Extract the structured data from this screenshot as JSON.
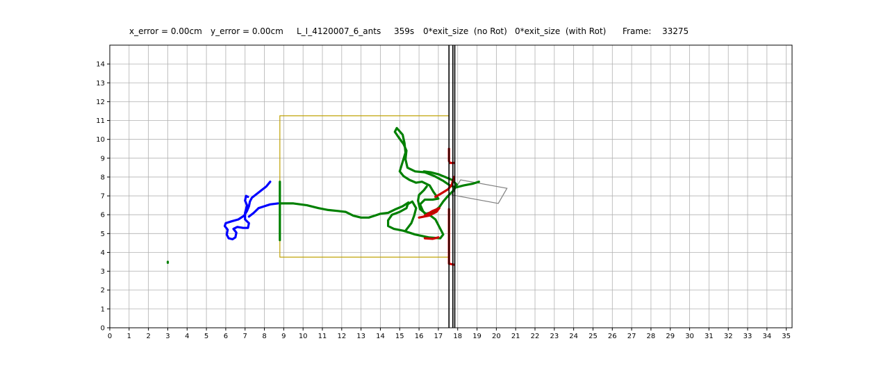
{
  "header": {
    "x_error": "x_error = 0.00cm",
    "y_error": "y_error = 0.00cm",
    "experiment": "L_I_4120007_6_ants",
    "time": "359s",
    "exit_no_rot": "0*exit_size  (no Rot)",
    "exit_with_rot": "0*exit_size  (with Rot)",
    "frame_label": "Frame:",
    "frame_value": "33275"
  },
  "chart_data": {
    "type": "line",
    "title": "",
    "xlabel": "",
    "ylabel": "",
    "xlim": [
      0,
      35.3
    ],
    "ylim": [
      0,
      15
    ],
    "xticks": [
      0,
      1,
      2,
      3,
      4,
      5,
      6,
      7,
      8,
      9,
      10,
      11,
      12,
      13,
      14,
      15,
      16,
      17,
      18,
      19,
      20,
      21,
      22,
      23,
      24,
      25,
      26,
      27,
      28,
      29,
      30,
      31,
      32,
      33,
      34,
      35
    ],
    "yticks": [
      0,
      1,
      2,
      3,
      4,
      5,
      6,
      7,
      8,
      9,
      10,
      11,
      12,
      13,
      14
    ],
    "grid": true,
    "colors": {
      "blue_track": "#0000ff",
      "green_track": "#008000",
      "red_track": "#cc0000",
      "box": "#bfa100",
      "walls": "#000000",
      "shape": "#808080",
      "grid": "#b0b0b0"
    },
    "slit_walls_x": [
      17.55,
      17.75,
      17.85
    ],
    "box_rect": {
      "x0": 8.8,
      "x1": 17.55,
      "y0": 3.75,
      "y1": 11.25
    },
    "load_shape": [
      [
        18.15,
        7.85
      ],
      [
        20.55,
        7.4
      ],
      [
        20.1,
        6.6
      ],
      [
        17.7,
        7.05
      ]
    ],
    "series": [
      {
        "color": "blue",
        "points": [
          [
            8.3,
            7.75
          ],
          [
            8.1,
            7.5
          ],
          [
            7.85,
            7.3
          ],
          [
            7.6,
            7.1
          ],
          [
            7.35,
            6.9
          ],
          [
            7.25,
            6.7
          ],
          [
            7.2,
            6.45
          ],
          [
            7.1,
            6.2
          ],
          [
            6.95,
            5.95
          ],
          [
            6.65,
            5.75
          ],
          [
            6.3,
            5.65
          ],
          [
            6.0,
            5.55
          ],
          [
            5.95,
            5.4
          ],
          [
            6.1,
            5.2
          ],
          [
            6.05,
            4.95
          ],
          [
            6.15,
            4.75
          ],
          [
            6.35,
            4.7
          ],
          [
            6.5,
            4.8
          ],
          [
            6.55,
            5.05
          ],
          [
            6.4,
            5.25
          ],
          [
            6.6,
            5.35
          ],
          [
            6.9,
            5.3
          ],
          [
            7.15,
            5.3
          ],
          [
            7.2,
            5.55
          ],
          [
            7.0,
            5.75
          ],
          [
            7.0,
            6.1
          ],
          [
            7.1,
            6.5
          ],
          [
            7.0,
            6.75
          ],
          [
            7.05,
            7.0
          ],
          [
            7.15,
            6.95
          ]
        ]
      },
      {
        "color": "blue",
        "points": [
          [
            7.2,
            5.9
          ],
          [
            7.45,
            6.1
          ],
          [
            7.7,
            6.35
          ],
          [
            8.0,
            6.45
          ],
          [
            8.3,
            6.55
          ],
          [
            8.7,
            6.6
          ]
        ]
      },
      {
        "color": "green",
        "points": [
          [
            8.8,
            4.65
          ],
          [
            8.8,
            7.75
          ]
        ]
      },
      {
        "color": "green",
        "points": [
          [
            8.8,
            6.6
          ],
          [
            9.5,
            6.6
          ],
          [
            10.2,
            6.5
          ],
          [
            10.8,
            6.35
          ],
          [
            11.3,
            6.25
          ],
          [
            11.8,
            6.2
          ],
          [
            12.2,
            6.15
          ],
          [
            12.6,
            5.95
          ],
          [
            13.0,
            5.85
          ],
          [
            13.4,
            5.85
          ],
          [
            13.7,
            5.95
          ],
          [
            14.0,
            6.05
          ],
          [
            14.4,
            6.1
          ],
          [
            14.8,
            6.3
          ],
          [
            15.15,
            6.45
          ],
          [
            15.45,
            6.65
          ],
          [
            15.35,
            6.35
          ],
          [
            15.0,
            6.15
          ],
          [
            14.6,
            6.0
          ],
          [
            14.4,
            5.7
          ],
          [
            14.4,
            5.4
          ],
          [
            14.7,
            5.25
          ],
          [
            15.2,
            5.15
          ],
          [
            15.8,
            4.95
          ],
          [
            16.5,
            4.8
          ],
          [
            17.1,
            4.75
          ],
          [
            17.25,
            4.95
          ],
          [
            17.05,
            5.35
          ],
          [
            16.85,
            5.75
          ],
          [
            16.6,
            5.95
          ],
          [
            16.35,
            6.0
          ],
          [
            16.2,
            6.2
          ],
          [
            16.05,
            6.55
          ],
          [
            16.3,
            6.8
          ],
          [
            16.7,
            6.8
          ],
          [
            17.0,
            6.85
          ],
          [
            16.75,
            7.2
          ],
          [
            16.55,
            7.55
          ],
          [
            16.15,
            7.75
          ],
          [
            15.85,
            7.7
          ],
          [
            15.5,
            7.85
          ],
          [
            15.2,
            8.05
          ],
          [
            15.0,
            8.3
          ],
          [
            15.15,
            8.8
          ],
          [
            15.3,
            9.3
          ],
          [
            15.25,
            9.8
          ],
          [
            15.15,
            10.25
          ],
          [
            14.85,
            10.6
          ],
          [
            14.75,
            10.4
          ],
          [
            14.95,
            10.1
          ],
          [
            15.2,
            9.75
          ],
          [
            15.35,
            9.4
          ],
          [
            15.3,
            8.95
          ],
          [
            15.4,
            8.5
          ],
          [
            15.8,
            8.3
          ],
          [
            16.3,
            8.25
          ],
          [
            16.8,
            8.05
          ],
          [
            17.25,
            7.8
          ],
          [
            17.6,
            7.55
          ],
          [
            17.9,
            7.45
          ],
          [
            18.3,
            7.55
          ],
          [
            18.8,
            7.65
          ],
          [
            19.1,
            7.75
          ]
        ]
      },
      {
        "color": "green",
        "points": [
          [
            16.4,
            7.5
          ],
          [
            16.25,
            7.3
          ],
          [
            16.0,
            7.05
          ],
          [
            15.95,
            6.75
          ],
          [
            16.05,
            6.3
          ],
          [
            16.35,
            6.05
          ],
          [
            16.75,
            6.15
          ],
          [
            17.05,
            6.4
          ],
          [
            17.25,
            6.7
          ],
          [
            17.5,
            7.0
          ],
          [
            17.8,
            7.3
          ],
          [
            17.95,
            7.6
          ],
          [
            17.7,
            7.85
          ],
          [
            17.35,
            8.0
          ],
          [
            17.0,
            8.15
          ],
          [
            16.6,
            8.25
          ],
          [
            16.25,
            8.3
          ]
        ]
      },
      {
        "color": "green",
        "points": [
          [
            15.3,
            5.15
          ],
          [
            15.6,
            5.55
          ],
          [
            15.75,
            5.95
          ],
          [
            15.85,
            6.35
          ],
          [
            15.65,
            6.7
          ],
          [
            15.4,
            6.55
          ]
        ]
      },
      {
        "color": "green",
        "points": [
          [
            3.0,
            3.5
          ],
          [
            3.0,
            3.45
          ]
        ]
      },
      {
        "color": "red",
        "points": [
          [
            17.55,
            9.5
          ],
          [
            17.55,
            8.85
          ],
          [
            17.6,
            8.75
          ],
          [
            17.8,
            8.75
          ]
        ]
      },
      {
        "color": "red",
        "points": [
          [
            17.55,
            6.3
          ],
          [
            17.55,
            3.4
          ],
          [
            17.8,
            3.35
          ]
        ]
      },
      {
        "color": "red",
        "points": [
          [
            16.0,
            5.85
          ],
          [
            16.5,
            5.95
          ],
          [
            16.9,
            6.15
          ],
          [
            17.05,
            6.35
          ],
          [
            16.7,
            6.2
          ],
          [
            16.3,
            5.95
          ]
        ]
      },
      {
        "color": "red",
        "points": [
          [
            17.8,
            8.0
          ],
          [
            17.7,
            7.6
          ],
          [
            17.5,
            7.35
          ],
          [
            17.1,
            7.1
          ],
          [
            16.85,
            6.95
          ]
        ]
      },
      {
        "color": "red",
        "points": [
          [
            16.3,
            4.75
          ],
          [
            16.7,
            4.72
          ],
          [
            17.0,
            4.8
          ]
        ]
      }
    ]
  }
}
